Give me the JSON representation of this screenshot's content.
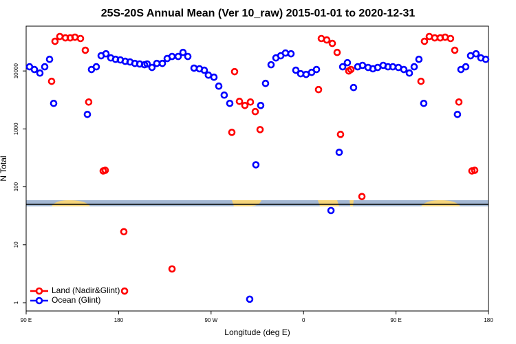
{
  "chart_data": {
    "type": "scatter",
    "title": "25S-20S Annual Mean (Ver 10_raw)   2015-01-01 to 2020-12-31",
    "x_label": "Longitude (deg E)",
    "y_label": "N Total",
    "log_y": true,
    "legend": "bottom-left",
    "xlim": [
      90,
      540
    ],
    "ylim": [
      0.72,
      59400
    ],
    "xticks": [
      {
        "value": 90,
        "label": "90 E"
      },
      180,
      {
        "value": 270,
        "label": "90 W"
      },
      {
        "value": 360,
        "label": "0"
      },
      {
        "value": 450,
        "label": "90 E"
      },
      {
        "value": 540,
        "label": "180"
      }
    ],
    "yticks": [
      1,
      10,
      100,
      1000,
      10000
    ],
    "series": [
      {
        "name": "Land (Nadir&Glint)",
        "color": "#ff0000",
        "x": [
          114.8,
          118.1,
          122.8,
          128.2,
          132.9,
          137.5,
          142.9,
          147.6,
          150.9,
          165.0,
          167.0,
          185.1,
          232.0,
          185.8,
          290.2,
          292.9,
          297.6,
          302.9,
          308.3,
          313.0,
          317.7,
          377.3,
          382.6,
          388.0,
          392.7,
          374.6,
          396.0,
          404.0,
          406.1,
          416.8,
          474.3,
          477.7,
          482.4,
          487.7,
          493.1,
          497.8,
          503.1,
          507.2,
          511.2,
          523.9,
          526.6
        ],
        "values": [
          6630,
          32500,
          39400,
          37300,
          37300,
          38300,
          36300,
          22800,
          2910,
          188,
          193,
          16.8,
          3.83,
          1.59,
          872,
          9730,
          2990,
          2540,
          2910,
          1990,
          973,
          36300,
          34300,
          29900,
          20900,
          4770,
          804,
          10000,
          10600,
          68,
          6630,
          32500,
          39400,
          37300,
          37300,
          38300,
          36300,
          22800,
          2910,
          188,
          193
        ]
      },
      {
        "name": "Ocean (Glint)",
        "color": "#0000ff",
        "x": [
          93.3,
          98.0,
          103.4,
          108.1,
          112.8,
          116.8,
          149.6,
          153.6,
          158.3,
          163.0,
          167.7,
          172.4,
          177.0,
          181.7,
          186.4,
          191.1,
          195.8,
          200.5,
          205.2,
          207.8,
          212.5,
          217.2,
          222.6,
          227.3,
          232.0,
          238.0,
          242.7,
          247.4,
          253.4,
          258.7,
          263.4,
          267.4,
          272.8,
          277.5,
          282.8,
          288.2,
          313.6,
          318.3,
          323.0,
          328.4,
          333.1,
          337.8,
          342.4,
          347.8,
          352.5,
          357.2,
          362.5,
          367.9,
          372.6,
          386.7,
          394.7,
          398.1,
          402.7,
          408.7,
          412.7,
          417.4,
          422.8,
          427.5,
          432.2,
          437.5,
          442.2,
          446.9,
          452.3,
          457.6,
          463.0,
          467.7,
          472.3,
          477.0,
          509.8,
          513.2,
          517.9,
          522.6,
          527.9,
          532.6,
          537.3,
          307.6
        ],
        "values": [
          11800,
          10600,
          9200,
          11800,
          15900,
          2760,
          1780,
          10600,
          11800,
          18300,
          19800,
          16800,
          15900,
          15500,
          14700,
          14300,
          13500,
          13200,
          12800,
          13200,
          11500,
          13500,
          13500,
          16400,
          17800,
          17800,
          20900,
          17800,
          11200,
          10900,
          10300,
          8480,
          7810,
          5470,
          3830,
          2760,
          240,
          2540,
          6100,
          12800,
          16800,
          18300,
          20400,
          19800,
          10300,
          8960,
          8720,
          9460,
          10600,
          39,
          394,
          11800,
          13900,
          5180,
          11800,
          12500,
          11500,
          10900,
          11500,
          12500,
          11800,
          11800,
          11500,
          10600,
          9200,
          11800,
          15900,
          2760,
          1780,
          10600,
          11800,
          18300,
          19800,
          16800,
          15900,
          1.15
        ]
      }
    ]
  }
}
